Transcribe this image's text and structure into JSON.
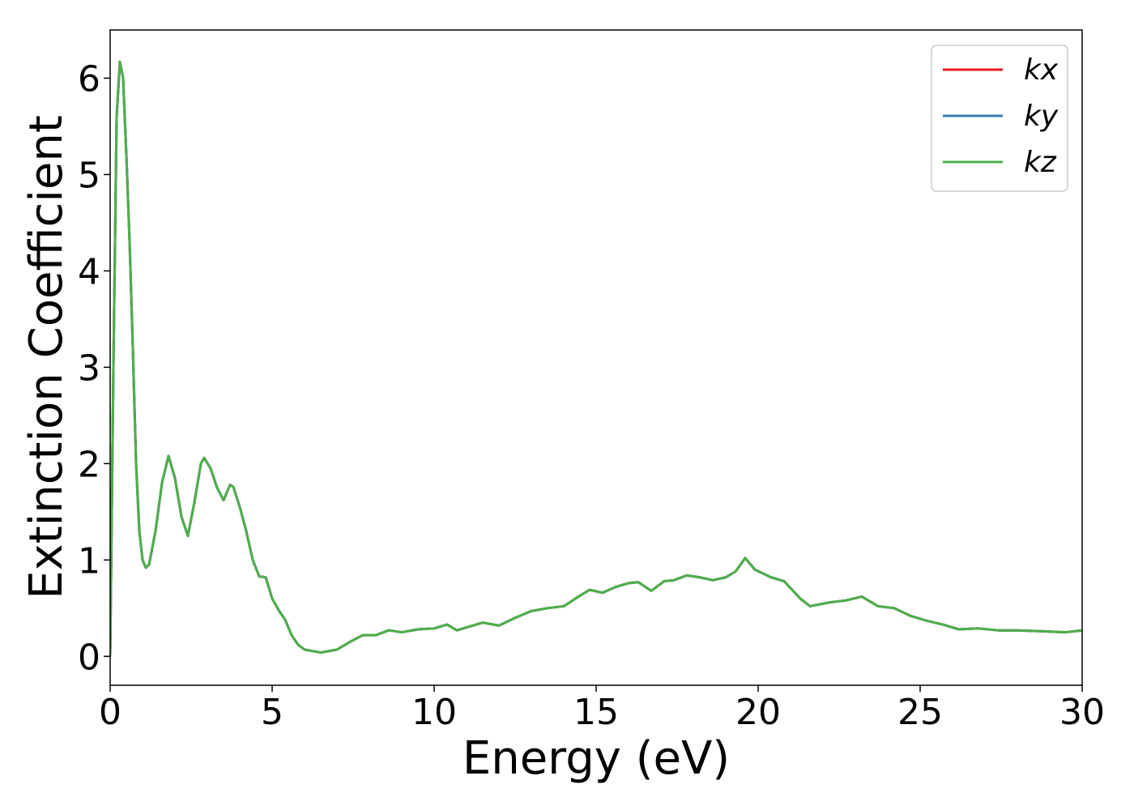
{
  "chart_data": {
    "type": "line",
    "xlabel": "Energy (eV)",
    "ylabel": "Extinction Coefficient",
    "xlim": [
      0,
      30
    ],
    "ylim": [
      -0.3,
      6.5
    ],
    "xticks": [
      0,
      5,
      10,
      15,
      20,
      25,
      30
    ],
    "yticks": [
      0,
      1,
      2,
      3,
      4,
      5,
      6
    ],
    "grid": false,
    "legend": "upper right",
    "x": [
      0,
      0.1,
      0.2,
      0.3,
      0.4,
      0.5,
      0.6,
      0.7,
      0.8,
      0.9,
      1.0,
      1.1,
      1.2,
      1.4,
      1.6,
      1.8,
      2.0,
      2.2,
      2.4,
      2.6,
      2.8,
      2.9,
      3.1,
      3.3,
      3.5,
      3.7,
      3.8,
      4.0,
      4.2,
      4.4,
      4.6,
      4.8,
      5.0,
      5.2,
      5.4,
      5.6,
      5.8,
      6.0,
      6.5,
      7.0,
      7.4,
      7.8,
      8.2,
      8.6,
      9.0,
      9.5,
      10.0,
      10.4,
      10.7,
      11.0,
      11.5,
      12.0,
      12.5,
      13.0,
      13.5,
      14.0,
      14.5,
      14.8,
      15.2,
      15.6,
      16.0,
      16.3,
      16.7,
      17.1,
      17.4,
      17.8,
      18.2,
      18.6,
      19.0,
      19.3,
      19.6,
      19.9,
      20.4,
      20.8,
      21.3,
      21.6,
      22.2,
      22.7,
      23.2,
      23.7,
      24.2,
      24.7,
      25.2,
      25.7,
      26.2,
      26.8,
      27.4,
      28.0,
      28.8,
      29.5,
      30
    ],
    "series": [
      {
        "name": "kx",
        "color": "#e41a1c",
        "values": [
          0,
          3.0,
          5.6,
          6.17,
          6.0,
          5.2,
          4.3,
          3.2,
          2.0,
          1.3,
          1.0,
          0.92,
          0.95,
          1.3,
          1.8,
          2.08,
          1.85,
          1.45,
          1.25,
          1.6,
          2.0,
          2.06,
          1.95,
          1.75,
          1.62,
          1.78,
          1.76,
          1.55,
          1.3,
          1.0,
          0.83,
          0.82,
          0.6,
          0.48,
          0.38,
          0.22,
          0.12,
          0.07,
          0.04,
          0.07,
          0.15,
          0.22,
          0.22,
          0.27,
          0.25,
          0.28,
          0.29,
          0.33,
          0.27,
          0.3,
          0.35,
          0.32,
          0.4,
          0.47,
          0.5,
          0.52,
          0.63,
          0.69,
          0.66,
          0.72,
          0.76,
          0.77,
          0.68,
          0.78,
          0.79,
          0.84,
          0.82,
          0.79,
          0.82,
          0.88,
          1.02,
          0.9,
          0.82,
          0.78,
          0.6,
          0.52,
          0.56,
          0.58,
          0.62,
          0.52,
          0.5,
          0.42,
          0.37,
          0.33,
          0.28,
          0.29,
          0.27,
          0.27,
          0.26,
          0.25,
          0.27
        ]
      },
      {
        "name": "ky",
        "color": "#377eb8",
        "values": [
          0,
          3.0,
          5.6,
          6.17,
          6.0,
          5.2,
          4.3,
          3.2,
          2.0,
          1.3,
          1.0,
          0.92,
          0.95,
          1.3,
          1.8,
          2.08,
          1.85,
          1.45,
          1.25,
          1.6,
          2.0,
          2.06,
          1.95,
          1.75,
          1.62,
          1.78,
          1.76,
          1.55,
          1.3,
          1.0,
          0.83,
          0.82,
          0.6,
          0.48,
          0.38,
          0.22,
          0.12,
          0.07,
          0.04,
          0.07,
          0.15,
          0.22,
          0.22,
          0.27,
          0.25,
          0.28,
          0.29,
          0.33,
          0.27,
          0.3,
          0.35,
          0.32,
          0.4,
          0.47,
          0.5,
          0.52,
          0.63,
          0.69,
          0.66,
          0.72,
          0.76,
          0.77,
          0.68,
          0.78,
          0.79,
          0.84,
          0.82,
          0.79,
          0.82,
          0.88,
          1.02,
          0.9,
          0.82,
          0.78,
          0.6,
          0.52,
          0.56,
          0.58,
          0.62,
          0.52,
          0.5,
          0.42,
          0.37,
          0.33,
          0.28,
          0.29,
          0.27,
          0.27,
          0.26,
          0.25,
          0.27
        ]
      },
      {
        "name": "kz",
        "color": "#4daf4a",
        "values": [
          0,
          3.0,
          5.6,
          6.17,
          6.0,
          5.2,
          4.3,
          3.2,
          2.0,
          1.3,
          1.0,
          0.92,
          0.95,
          1.3,
          1.8,
          2.08,
          1.85,
          1.45,
          1.25,
          1.6,
          2.0,
          2.06,
          1.95,
          1.75,
          1.62,
          1.78,
          1.76,
          1.55,
          1.3,
          1.0,
          0.83,
          0.82,
          0.6,
          0.48,
          0.38,
          0.22,
          0.12,
          0.07,
          0.04,
          0.07,
          0.15,
          0.22,
          0.22,
          0.27,
          0.25,
          0.28,
          0.29,
          0.33,
          0.27,
          0.3,
          0.35,
          0.32,
          0.4,
          0.47,
          0.5,
          0.52,
          0.63,
          0.69,
          0.66,
          0.72,
          0.76,
          0.77,
          0.68,
          0.78,
          0.79,
          0.84,
          0.82,
          0.79,
          0.82,
          0.88,
          1.02,
          0.9,
          0.82,
          0.78,
          0.6,
          0.52,
          0.56,
          0.58,
          0.62,
          0.52,
          0.5,
          0.42,
          0.37,
          0.33,
          0.28,
          0.29,
          0.27,
          0.27,
          0.26,
          0.25,
          0.27
        ]
      }
    ]
  }
}
